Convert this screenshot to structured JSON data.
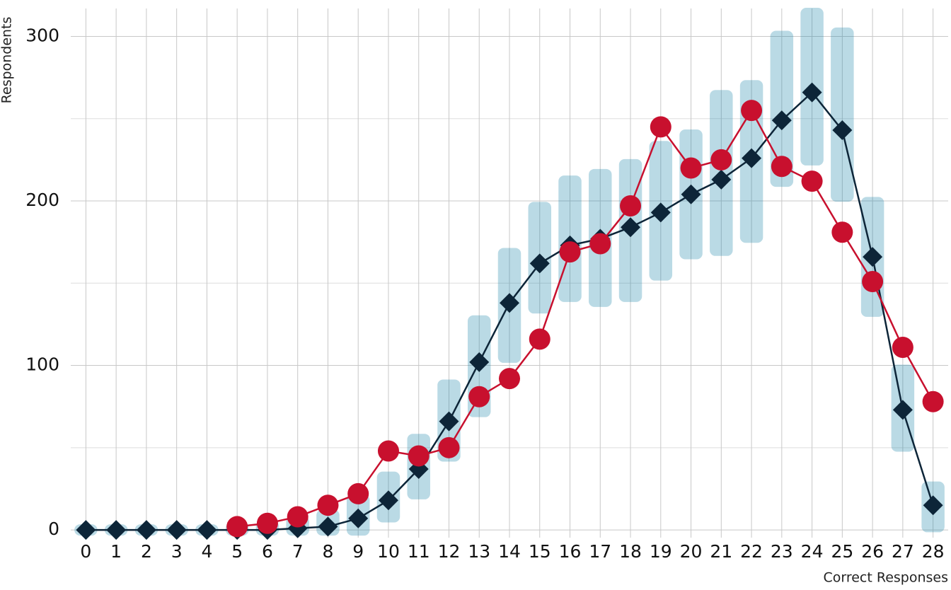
{
  "chart_data": {
    "type": "line",
    "xlabel": "Correct Responses",
    "ylabel": "Respondents",
    "x": [
      0,
      1,
      2,
      3,
      4,
      5,
      6,
      7,
      8,
      9,
      10,
      11,
      12,
      13,
      14,
      15,
      16,
      17,
      18,
      19,
      20,
      21,
      22,
      23,
      24,
      25,
      26,
      27,
      28
    ],
    "xlim": [
      -0.5,
      28.5
    ],
    "xticks": [
      0,
      1,
      2,
      3,
      4,
      5,
      6,
      7,
      8,
      9,
      10,
      11,
      12,
      13,
      14,
      15,
      16,
      17,
      18,
      19,
      20,
      21,
      22,
      23,
      24,
      25,
      26,
      27,
      28
    ],
    "ylim": [
      -4.7,
      317
    ],
    "yticks": [
      0,
      100,
      200,
      300
    ],
    "yminor": [
      50,
      150,
      250
    ],
    "grid": true,
    "series": [
      {
        "style": "cloud",
        "color": "#1a85a8",
        "low": [
          0,
          0,
          0,
          0,
          0,
          0,
          0,
          0,
          0,
          0,
          8,
          22,
          45,
          72,
          105,
          135,
          142,
          139,
          142,
          155,
          168,
          170,
          178,
          212,
          225,
          203,
          133,
          51,
          2
        ],
        "high": [
          0,
          0,
          0,
          0,
          0,
          1,
          2,
          5,
          9,
          18,
          32,
          55,
          88,
          127,
          168,
          196,
          212,
          216,
          222,
          233,
          240,
          264,
          270,
          300,
          314,
          302,
          199,
          97,
          26
        ]
      },
      {
        "style": "diamond",
        "color": "#0d2538",
        "values": [
          0,
          0,
          0,
          0,
          0,
          0,
          0,
          1,
          2,
          7,
          18,
          37,
          66,
          102,
          138,
          162,
          173,
          177,
          184,
          193,
          204,
          213,
          226,
          249,
          266,
          243,
          166,
          73,
          15
        ]
      },
      {
        "style": "circle",
        "color": "#c8102e",
        "values": [
          null,
          null,
          null,
          null,
          null,
          2,
          4,
          8,
          15,
          22,
          48,
          45,
          50,
          81,
          92,
          116,
          169,
          174,
          197,
          245,
          220,
          225,
          255,
          221,
          212,
          181,
          151,
          111,
          78
        ]
      }
    ]
  }
}
